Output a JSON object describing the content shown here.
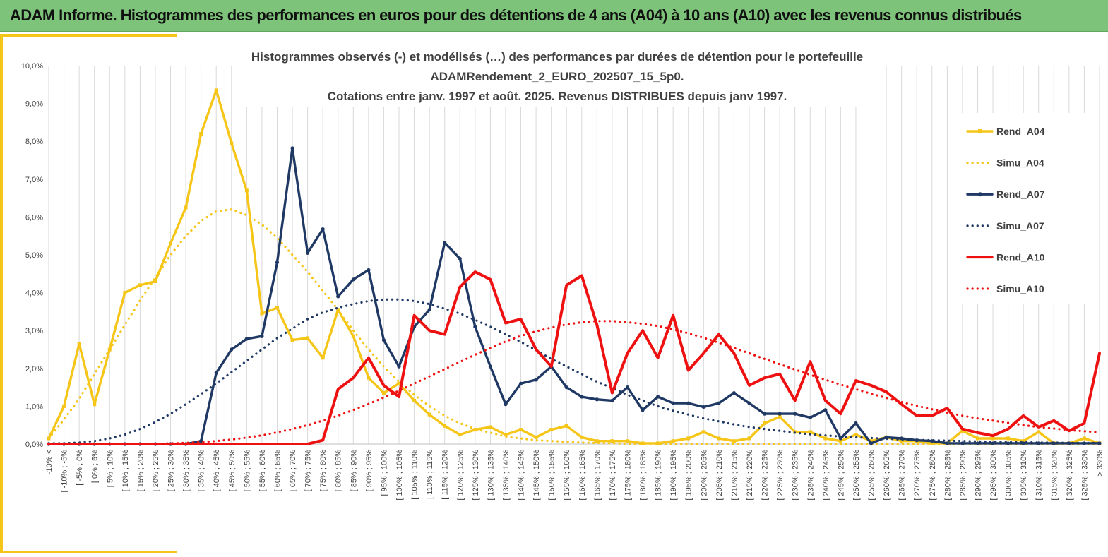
{
  "banner": {
    "title": "ADAM Informe. Histogrammes des performances en euros pour des détentions de 4 ans (A04) à 10 ans (A10) avec les revenus connus distribués"
  },
  "colors": {
    "banner_bg": "#7dc47a",
    "accent": "#f5c518",
    "gold": "#f5c518",
    "navy": "#1f3864",
    "red": "#ee1111"
  },
  "chart_data": {
    "type": "line",
    "title_lines": [
      "Histogrammes observés (-) et modélisés (…) des performances par durées de détention pour le portefeuille",
      "ADAMRendement_2_EURO_202507_15_5p0.",
      "Cotations entre janv. 1997 et août. 2025. Revenus DISTRIBUES depuis janv 1997."
    ],
    "xlabel": "",
    "ylabel": "",
    "ylim": [
      0,
      0.1
    ],
    "yticks": [
      0,
      0.01,
      0.02,
      0.03,
      0.04,
      0.05,
      0.06,
      0.07,
      0.08,
      0.09,
      0.1
    ],
    "ytick_labels": [
      "0,0%",
      "1,0%",
      "2,0%",
      "3,0%",
      "4,0%",
      "5,0%",
      "6,0%",
      "7,0%",
      "8,0%",
      "9,0%",
      "10,0%"
    ],
    "grid": "vertical",
    "legend_position": "right",
    "categories": [
      "-10% <",
      "[ -10% ; -5%",
      "[ -5% ; 0%",
      "[ 0% ; 5%",
      "[ 5% ; 10%",
      "[ 10% ; 15%",
      "[ 15% ; 20%",
      "[ 20% ; 25%",
      "[ 25% ; 30%",
      "[ 30% ; 35%",
      "[ 35% ; 40%",
      "[ 40% ; 45%",
      "[ 45% ; 50%",
      "[ 50% ; 55%",
      "[ 55% ; 60%",
      "[ 60% ; 65%",
      "[ 65% ; 70%",
      "[ 70% ; 75%",
      "[ 75% ; 80%",
      "[ 80% ; 85%",
      "[ 85% ; 90%",
      "[ 90% ; 95%",
      "[ 95% ; 100%",
      "[ 100% ; 105%",
      "[ 105% ; 110%",
      "[ 110% ; 115%",
      "[ 115% ; 120%",
      "[ 120% ; 125%",
      "[ 125% ; 130%",
      "[ 130% ; 135%",
      "[ 135% ; 140%",
      "[ 140% ; 145%",
      "[ 145% ; 150%",
      "[ 150% ; 155%",
      "[ 155% ; 160%",
      "[ 160% ; 165%",
      "[ 165% ; 170%",
      "[ 170% ; 175%",
      "[ 175% ; 180%",
      "[ 180% ; 185%",
      "[ 185% ; 190%",
      "[ 190% ; 195%",
      "[ 195% ; 200%",
      "[ 200% ; 205%",
      "[ 205% ; 210%",
      "[ 210% ; 215%",
      "[ 215% ; 220%",
      "[ 220% ; 225%",
      "[ 225% ; 230%",
      "[ 230% ; 235%",
      "[ 235% ; 240%",
      "[ 240% ; 245%",
      "[ 245% ; 250%",
      "[ 250% ; 255%",
      "[ 255% ; 260%",
      "[ 260% ; 265%",
      "[ 265% ; 270%",
      "[ 270% ; 275%",
      "[ 275% ; 280%",
      "[ 280% ; 285%",
      "[ 285% ; 290%",
      "[ 290% ; 295%",
      "[ 295% ; 300%",
      "[ 300% ; 305%",
      "[ 305% ; 310%",
      "[ 310% ; 315%",
      "[ 315% ; 320%",
      "[ 320% ; 325%",
      "[ 325% ; 330%",
      "> 330%"
    ],
    "series": [
      {
        "name": "Rend_A04",
        "style": "solid",
        "marker": "square",
        "color": "#f5c518",
        "values": [
          0.0015,
          0.01,
          0.0265,
          0.0105,
          0.025,
          0.04,
          0.042,
          0.043,
          0.053,
          0.0625,
          0.082,
          0.0935,
          0.0795,
          0.067,
          0.0345,
          0.036,
          0.0275,
          0.028,
          0.0228,
          0.0355,
          0.0285,
          0.0175,
          0.0135,
          0.016,
          0.0115,
          0.0078,
          0.0048,
          0.0025,
          0.0038,
          0.0045,
          0.0025,
          0.0038,
          0.0018,
          0.0038,
          0.0048,
          0.0018,
          0.0008,
          0.0008,
          0.0008,
          0.0002,
          0.0002,
          0.0008,
          0.0015,
          0.0032,
          0.0015,
          0.0008,
          0.0015,
          0.0055,
          0.0072,
          0.0032,
          0.0032,
          0.0015,
          0.0008,
          0.0025,
          0.0008,
          0.0018,
          0.0008,
          0.0008,
          0.0002,
          0.0002,
          0.0035,
          0.0015,
          0.0015,
          0.0015,
          0.0008,
          0.0032,
          0.0002,
          0.0002,
          0.0015,
          0.0002
        ]
      },
      {
        "name": "Simu_A04",
        "style": "dotted",
        "color": "#f5c518",
        "values": [
          0.0015,
          0.0065,
          0.012,
          0.0185,
          0.025,
          0.0315,
          0.038,
          0.044,
          0.05,
          0.055,
          0.059,
          0.0615,
          0.062,
          0.0605,
          0.058,
          0.0545,
          0.05,
          0.0455,
          0.0405,
          0.0355,
          0.03,
          0.025,
          0.0205,
          0.0165,
          0.013,
          0.01,
          0.0075,
          0.0055,
          0.004,
          0.003,
          0.002,
          0.0015,
          0.001,
          0.0008,
          0.0006,
          0.0004,
          0.0003,
          0.0002,
          0.0001,
          0.0001,
          0,
          0,
          0,
          0,
          0,
          0,
          0,
          0,
          0,
          0,
          0,
          0,
          0,
          0,
          0,
          0,
          0,
          0,
          0,
          0,
          0,
          0,
          0,
          0,
          0,
          0,
          0,
          0,
          0,
          0
        ]
      },
      {
        "name": "Rend_A07",
        "style": "solid",
        "marker": "circle",
        "color": "#1f3864",
        "values": [
          0,
          0,
          0,
          0,
          0,
          0,
          0,
          0,
          0,
          0,
          0.0008,
          0.0188,
          0.025,
          0.0278,
          0.0285,
          0.048,
          0.0782,
          0.0505,
          0.0568,
          0.039,
          0.0435,
          0.046,
          0.0275,
          0.0205,
          0.031,
          0.0355,
          0.0532,
          0.049,
          0.031,
          0.0205,
          0.0105,
          0.016,
          0.017,
          0.0205,
          0.015,
          0.0125,
          0.0118,
          0.0115,
          0.015,
          0.009,
          0.0125,
          0.0108,
          0.0108,
          0.0098,
          0.0108,
          0.0135,
          0.0108,
          0.008,
          0.008,
          0.008,
          0.007,
          0.009,
          0.0015,
          0.0055,
          0.0002,
          0.0018,
          0.0015,
          0.001,
          0.0008,
          0.0002,
          0.0002,
          0.0002,
          0.0002,
          0.0002,
          0.0002,
          0.0002,
          0.0002,
          0.0002,
          0.0002,
          0.0002
        ]
      },
      {
        "name": "Simu_A07",
        "style": "dotted",
        "color": "#1f3864",
        "values": [
          0.0002,
          0.0002,
          0.0004,
          0.0008,
          0.0015,
          0.0025,
          0.004,
          0.0058,
          0.008,
          0.0105,
          0.0132,
          0.016,
          0.019,
          0.022,
          0.025,
          0.028,
          0.0305,
          0.033,
          0.0348,
          0.036,
          0.037,
          0.0378,
          0.0382,
          0.0382,
          0.0378,
          0.037,
          0.0358,
          0.0345,
          0.0328,
          0.031,
          0.029,
          0.027,
          0.0248,
          0.0225,
          0.0205,
          0.0185,
          0.0165,
          0.0148,
          0.013,
          0.0115,
          0.01,
          0.0088,
          0.0078,
          0.0068,
          0.006,
          0.0052,
          0.0045,
          0.004,
          0.0035,
          0.003,
          0.0026,
          0.0023,
          0.002,
          0.0018,
          0.0016,
          0.0014,
          0.0012,
          0.0011,
          0.001,
          0.0009,
          0.0008,
          0.0007,
          0.0006,
          0.0005,
          0.0005,
          0.0004,
          0.0004,
          0.0003,
          0.0003,
          0.0003
        ]
      },
      {
        "name": "Rend_A10",
        "style": "solid",
        "marker": "none",
        "color": "#ee1111",
        "values": [
          0,
          0,
          0,
          0,
          0,
          0,
          0,
          0,
          0,
          0,
          0,
          0,
          0,
          0,
          0,
          0,
          0,
          0,
          0.001,
          0.0145,
          0.0175,
          0.0228,
          0.0155,
          0.0125,
          0.034,
          0.03,
          0.029,
          0.0415,
          0.0455,
          0.0435,
          0.032,
          0.033,
          0.025,
          0.0205,
          0.042,
          0.0445,
          0.0315,
          0.0135,
          0.024,
          0.03,
          0.0228,
          0.034,
          0.0195,
          0.024,
          0.029,
          0.024,
          0.0155,
          0.0175,
          0.0185,
          0.0115,
          0.0218,
          0.0115,
          0.008,
          0.0168,
          0.0155,
          0.0138,
          0.0105,
          0.0075,
          0.0075,
          0.0095,
          0.004,
          0.003,
          0.0022,
          0.004,
          0.0075,
          0.0045,
          0.0062,
          0.0035,
          0.0055,
          0.024
        ]
      },
      {
        "name": "Simu_A10",
        "style": "dotted",
        "color": "#ee1111",
        "values": [
          0,
          0,
          0,
          0,
          0,
          0,
          0,
          0,
          0.0002,
          0.0003,
          0.0005,
          0.0008,
          0.0012,
          0.0017,
          0.0023,
          0.0031,
          0.004,
          0.005,
          0.0062,
          0.0075,
          0.009,
          0.0106,
          0.0123,
          0.0141,
          0.016,
          0.0179,
          0.0198,
          0.0217,
          0.0236,
          0.0254,
          0.0271,
          0.0286,
          0.0298,
          0.0308,
          0.0316,
          0.0322,
          0.0325,
          0.0325,
          0.0322,
          0.0318,
          0.0312,
          0.0303,
          0.0293,
          0.0281,
          0.0268,
          0.0254,
          0.024,
          0.0225,
          0.0211,
          0.0197,
          0.0183,
          0.017,
          0.0157,
          0.0145,
          0.0133,
          0.0122,
          0.0111,
          0.0101,
          0.0092,
          0.0083,
          0.0075,
          0.0068,
          0.0062,
          0.0056,
          0.005,
          0.0045,
          0.0041,
          0.0037,
          0.0034,
          0.0031
        ]
      }
    ]
  }
}
